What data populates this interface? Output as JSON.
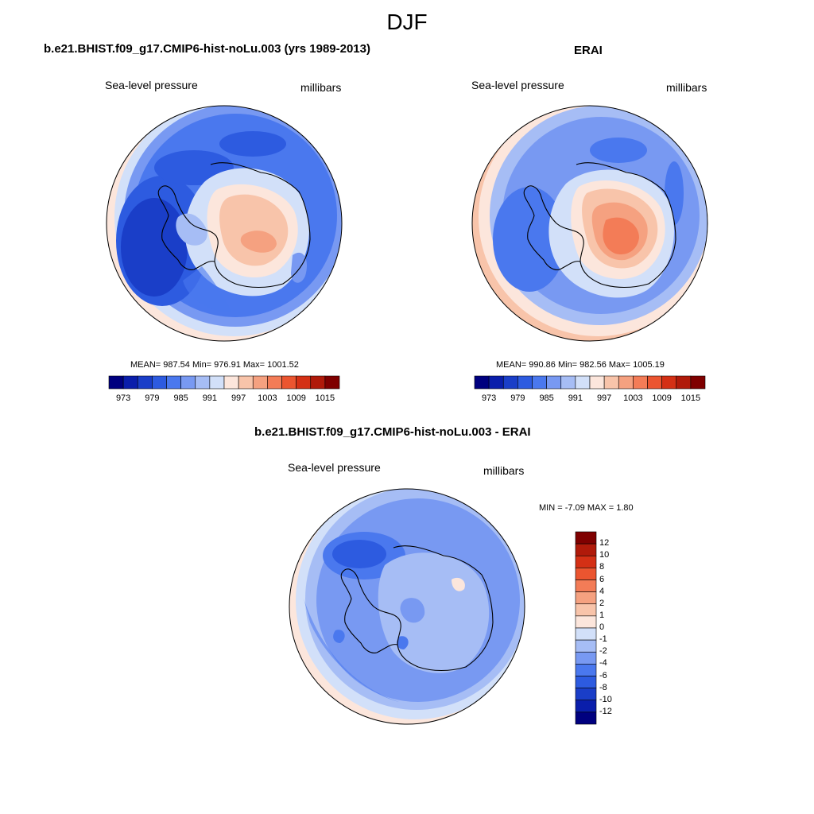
{
  "season": "DJF",
  "panels": {
    "model": {
      "title": "b.e21.BHIST.f09_g17.CMIP6-hist-noLu.003 (yrs 1989-2013)",
      "variable": "Sea-level pressure",
      "units": "millibars",
      "stats": "MEAN= 987.54  Min= 976.91  Max= 1001.52"
    },
    "obs": {
      "title": "ERAI",
      "variable": "Sea-level pressure",
      "units": "millibars",
      "stats": "MEAN= 990.86  Min= 982.56  Max= 1005.19"
    },
    "diff": {
      "title": "b.e21.BHIST.f09_g17.CMIP6-hist-noLu.003 - ERAI",
      "variable": "Sea-level pressure",
      "units": "millibars",
      "stats": "MIN =  -7.09 MAX =   1.80"
    }
  },
  "colorbar_main": {
    "labels": [
      "973",
      "979",
      "985",
      "991",
      "997",
      "1003",
      "1009",
      "1015"
    ],
    "colors": [
      "#00007f",
      "#0a1eab",
      "#1a3ec8",
      "#2d5be0",
      "#4a78ee",
      "#7899f2",
      "#a6bdf5",
      "#d2e0f9",
      "#fce6dc",
      "#f8c4aa",
      "#f5a180",
      "#f37c57",
      "#eb5530",
      "#d43015",
      "#b01a0a",
      "#7f0000"
    ]
  },
  "colorbar_diff": {
    "labels": [
      "12",
      "10",
      "8",
      "6",
      "4",
      "2",
      "1",
      "0",
      "-1",
      "-2",
      "-4",
      "-6",
      "-8",
      "-10",
      "-12"
    ],
    "colors": [
      "#7f0000",
      "#b01a0a",
      "#d43015",
      "#eb5530",
      "#f37c57",
      "#f5a180",
      "#f8c4aa",
      "#fce6dc",
      "#d2e0f9",
      "#a6bdf5",
      "#7899f2",
      "#4a78ee",
      "#2d5be0",
      "#1a3ec8",
      "#0a1eab",
      "#00007f"
    ]
  }
}
